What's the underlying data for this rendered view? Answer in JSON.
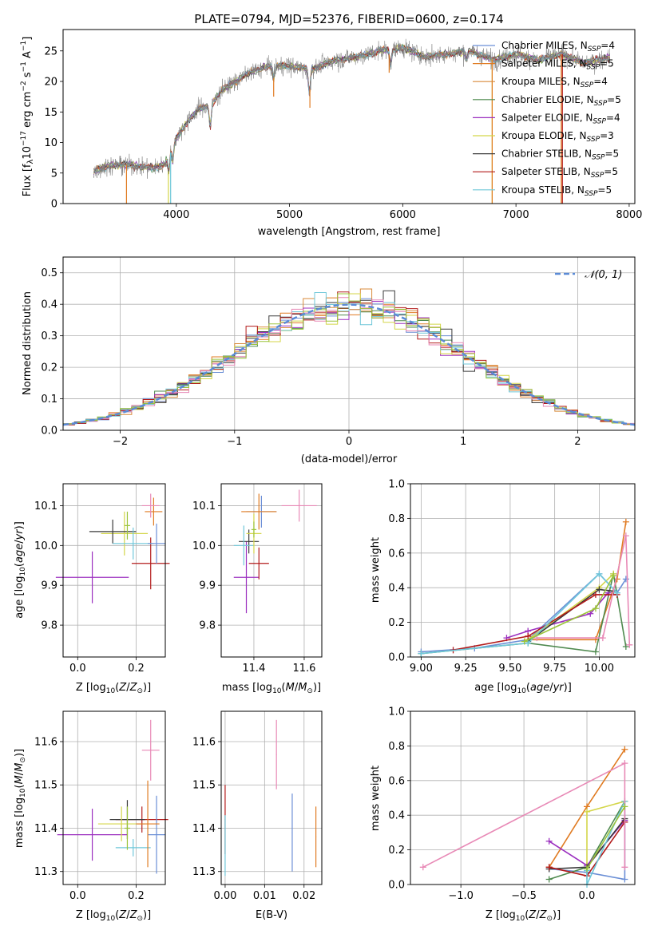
{
  "colors": {
    "Chabrier MILES": "#6b8fd6",
    "Salpeter MILES": "#e07b22",
    "Kroupa MILES": "#d98a3a",
    "Chabrier ELODIE": "#4f8a4f",
    "Salpeter ELODIE": "#9b2fbf",
    "Kroupa ELODIE": "#d4d64a",
    "Chabrier STELIB": "#3a3a3a",
    "Salpeter STELIB": "#b31b1b",
    "Kroupa STELIB": "#6fc7d9",
    "pink": "#e889b6",
    "green2": "#9bc43a",
    "norm": "#5b8bd6"
  },
  "chart_data": [
    {
      "type": "line",
      "title": "PLATE=0794, MJD=52376, FIBERID=0600, z=0.174",
      "xlabel": "wavelength [Angstrom, rest frame]",
      "ylabel": "Flux [f_λ 10^-17 erg cm^-2 s^-1 A^-1]",
      "xlim": [
        3000,
        8050
      ],
      "ylim": [
        0,
        28.5
      ],
      "xticks": [
        "4000",
        "5000",
        "6000",
        "7000",
        "8000"
      ],
      "yticks": [
        "0",
        "5",
        "10",
        "15",
        "20",
        "25"
      ],
      "grid": false,
      "legend_position": "upper-right",
      "legend": [
        {
          "name": "Chabrier MILES",
          "n": "4"
        },
        {
          "name": "Salpeter MILES",
          "n": "5"
        },
        {
          "name": "Kroupa MILES",
          "n": "4"
        },
        {
          "name": "Chabrier ELODIE",
          "n": "5"
        },
        {
          "name": "Salpeter ELODIE",
          "n": "4"
        },
        {
          "name": "Kroupa ELODIE",
          "n": "3"
        },
        {
          "name": "Chabrier STELIB",
          "n": "5"
        },
        {
          "name": "Salpeter STELIB",
          "n": "5"
        },
        {
          "name": "Kroupa STELIB",
          "n": "5"
        }
      ],
      "spectrum_anchors": {
        "x": [
          3270,
          3400,
          3600,
          3800,
          3900,
          3950,
          4000,
          4100,
          4200,
          4300,
          4400,
          4600,
          4800,
          5000,
          5200,
          5400,
          5600,
          5800,
          6000,
          6200,
          6400,
          6600,
          6800,
          7000,
          7200,
          7400,
          7600,
          7830
        ],
        "y": [
          5.2,
          6.3,
          6.3,
          5.8,
          6.5,
          9.0,
          10.7,
          13.5,
          15.5,
          16.0,
          18.5,
          21.0,
          22.5,
          22.5,
          22.0,
          23.5,
          24.0,
          25.0,
          25.5,
          24.0,
          24.5,
          25.0,
          23.5,
          24.5,
          23.5,
          24.5,
          23.0,
          24.0
        ]
      }
    },
    {
      "type": "line",
      "xlabel": "(data-model)/error",
      "ylabel": "Normed distribution",
      "xlim": [
        -2.5,
        2.5
      ],
      "ylim": [
        0,
        0.55
      ],
      "xticks": [
        "−2",
        "−1",
        "0",
        "1",
        "2"
      ],
      "yticks": [
        "0.0",
        "0.1",
        "0.2",
        "0.3",
        "0.4",
        "0.5"
      ],
      "grid": true,
      "legend_position": "upper-right",
      "legend": [
        "𝒩(0, 1)"
      ],
      "bin_width": 0.1
    },
    {
      "type": "scatter",
      "xlabel": "Z [log10(Z/Z☉)]",
      "ylabel": "age [log10(age/yr)]",
      "xlim": [
        -0.05,
        0.3
      ],
      "ylim": [
        9.72,
        10.155
      ],
      "xticks": [
        "0.0",
        "0.2"
      ],
      "yticks": [
        "9.8",
        "9.9",
        "10.0",
        "10.1"
      ],
      "grid": true,
      "points": [
        {
          "series": "Salpeter ELODIE",
          "x": 0.05,
          "y": 9.92,
          "xerr": 0.125,
          "yerr": 0.065
        },
        {
          "series": "Salpeter STELIB",
          "x": 0.25,
          "y": 9.955,
          "xerr": 0.065,
          "yerr": 0.065
        },
        {
          "series": "Kroupa ELODIE",
          "x": 0.16,
          "y": 10.03,
          "xerr": 0.08,
          "yerr": 0.055
        },
        {
          "series": "Chabrier STELIB",
          "x": 0.12,
          "y": 10.035,
          "xerr": 0.08,
          "yerr": 0.03
        },
        {
          "series": "Kroupa STELIB",
          "x": 0.19,
          "y": 10.005,
          "xerr": 0.07,
          "yerr": 0.04
        },
        {
          "series": "Chabrier MILES",
          "x": 0.27,
          "y": 10.005,
          "xerr": 0.03,
          "yerr": 0.05
        },
        {
          "series": "Salpeter MILES",
          "x": 0.26,
          "y": 10.085,
          "xerr": 0.03,
          "yerr": 0.035
        },
        {
          "series": "Pink",
          "x": 0.25,
          "y": 10.1,
          "xerr": 0.03,
          "yerr": 0.03
        },
        {
          "series": "Green2",
          "x": 0.17,
          "y": 10.05,
          "xerr": 0.01,
          "yerr": 0.035
        }
      ]
    },
    {
      "type": "scatter",
      "xlabel": "mass [log10(M/M☉)]",
      "ylabel": "",
      "xlim": [
        11.27,
        11.67
      ],
      "ylim": [
        9.72,
        10.155
      ],
      "xticks": [
        "11.4",
        "11.6"
      ],
      "yticks": [
        "9.8",
        "9.9",
        "10.0",
        "10.1"
      ],
      "grid": true,
      "points": [
        {
          "series": "Salpeter ELODIE",
          "x": 11.37,
          "y": 9.92,
          "xerr": 0.05,
          "yerr": 0.09
        },
        {
          "series": "Salpeter STELIB",
          "x": 11.42,
          "y": 9.955,
          "xerr": 0.04,
          "yerr": 0.04
        },
        {
          "series": "Chabrier STELIB",
          "x": 11.38,
          "y": 10.01,
          "xerr": 0.04,
          "yerr": 0.03
        },
        {
          "series": "Kroupa STELIB",
          "x": 11.36,
          "y": 10.0,
          "xerr": 0.04,
          "yerr": 0.05
        },
        {
          "series": "Kroupa ELODIE",
          "x": 11.4,
          "y": 10.03,
          "xerr": 0.03,
          "yerr": 0.05
        },
        {
          "series": "Chabrier MILES",
          "x": 11.43,
          "y": 10.085,
          "xerr": 0.06,
          "yerr": 0.04
        },
        {
          "series": "Salpeter MILES",
          "x": 11.42,
          "y": 10.085,
          "xerr": 0.07,
          "yerr": 0.045
        },
        {
          "series": "Pink",
          "x": 11.58,
          "y": 10.1,
          "xerr": 0.07,
          "yerr": 0.04
        },
        {
          "series": "Green2",
          "x": 11.4,
          "y": 10.04,
          "xerr": 0.01,
          "yerr": 0.02
        }
      ]
    },
    {
      "type": "line",
      "xlabel": "age [log10(age/yr)]",
      "ylabel": "mass weight",
      "xlim": [
        8.94,
        10.2
      ],
      "ylim": [
        0.0,
        1.0
      ],
      "xticks": [
        "9.00",
        "9.25",
        "9.50",
        "9.75",
        "10.00"
      ],
      "yticks": [
        "0.0",
        "0.2",
        "0.4",
        "0.6",
        "0.8",
        "1.0"
      ],
      "grid": true,
      "series": [
        {
          "name": "Chabrier MILES",
          "x": [
            9.0,
            9.3,
            9.6,
            10.0,
            10.1,
            10.15
          ],
          "y": [
            0.03,
            0.05,
            0.1,
            0.48,
            0.37,
            0.45
          ]
        },
        {
          "name": "Salpeter MILES",
          "x": [
            9.6,
            9.98,
            10.1,
            10.15
          ],
          "y": [
            0.1,
            0.1,
            0.45,
            0.78
          ]
        },
        {
          "name": "Chabrier ELODIE",
          "x": [
            9.0,
            9.6,
            9.98,
            10.08,
            10.15
          ],
          "y": [
            0.02,
            0.08,
            0.03,
            0.48,
            0.06
          ]
        },
        {
          "name": "Salpeter ELODIE",
          "x": [
            9.48,
            9.6,
            9.95,
            10.05
          ],
          "y": [
            0.11,
            0.15,
            0.25,
            0.37
          ]
        },
        {
          "name": "Kroupa ELODIE",
          "x": [
            9.6,
            10.0,
            10.08
          ],
          "y": [
            0.1,
            0.4,
            0.48
          ]
        },
        {
          "name": "Chabrier STELIB",
          "x": [
            9.6,
            10.0,
            10.08
          ],
          "y": [
            0.09,
            0.39,
            0.38
          ]
        },
        {
          "name": "Salpeter STELIB",
          "x": [
            9.18,
            9.6,
            9.98,
            10.1
          ],
          "y": [
            0.04,
            0.12,
            0.36,
            0.36
          ]
        },
        {
          "name": "Kroupa STELIB",
          "x": [
            9.0,
            9.6,
            10.0,
            10.1
          ],
          "y": [
            0.02,
            0.08,
            0.48,
            0.37
          ]
        },
        {
          "name": "Pink",
          "x": [
            9.65,
            10.02,
            10.15,
            10.17
          ],
          "y": [
            0.11,
            0.11,
            0.7,
            0.07
          ]
        },
        {
          "name": "Green2",
          "x": [
            9.58,
            9.98,
            10.08
          ],
          "y": [
            0.09,
            0.28,
            0.47
          ]
        }
      ]
    },
    {
      "type": "scatter",
      "xlabel": "Z [log10(Z/Z☉)]",
      "ylabel": "mass [log10(M/M☉)]",
      "xlim": [
        -0.05,
        0.3
      ],
      "ylim": [
        11.27,
        11.67
      ],
      "xticks": [
        "0.0",
        "0.2"
      ],
      "yticks": [
        "11.3",
        "11.4",
        "11.5",
        "11.6"
      ],
      "grid": true,
      "points": [
        {
          "series": "Salpeter ELODIE",
          "x": 0.05,
          "y": 11.385,
          "xerr": 0.12,
          "yerr": 0.06
        },
        {
          "series": "Salpeter STELIB",
          "x": 0.22,
          "y": 11.42,
          "xerr": 0.09,
          "yerr": 0.03
        },
        {
          "series": "Chabrier STELIB",
          "x": 0.17,
          "y": 11.42,
          "xerr": 0.06,
          "yerr": 0.045
        },
        {
          "series": "Kroupa ELODIE",
          "x": 0.15,
          "y": 11.41,
          "xerr": 0.08,
          "yerr": 0.04
        },
        {
          "series": "Kroupa STELIB",
          "x": 0.19,
          "y": 11.355,
          "xerr": 0.06,
          "yerr": 0.02
        },
        {
          "series": "Chabrier MILES",
          "x": 0.27,
          "y": 11.385,
          "xerr": 0.03,
          "yerr": 0.09
        },
        {
          "series": "Salpeter MILES",
          "x": 0.24,
          "y": 11.41,
          "xerr": 0.04,
          "yerr": 0.1
        },
        {
          "series": "Pink",
          "x": 0.25,
          "y": 11.58,
          "xerr": 0.03,
          "yerr": 0.07
        },
        {
          "series": "Green2",
          "x": 0.17,
          "y": 11.4,
          "xerr": 0.01,
          "yerr": 0.05
        }
      ]
    },
    {
      "type": "scatter",
      "xlabel": "E(B-V)",
      "ylabel": "",
      "xlim": [
        -0.001,
        0.0245
      ],
      "ylim": [
        11.27,
        11.67
      ],
      "xticks": [
        "0.00",
        "0.01",
        "0.02"
      ],
      "yticks": [
        "11.3",
        "11.4",
        "11.5",
        "11.6"
      ],
      "grid": true,
      "points": [
        {
          "series": "Salpeter STELIB",
          "x": 0.0,
          "y": 11.42,
          "xerr": 0.0001,
          "yerr": 0.08
        },
        {
          "series": "Kroupa STELIB",
          "x": 0.0,
          "y": 11.36,
          "xerr": 0.0001,
          "yerr": 0.07
        },
        {
          "series": "Pink",
          "x": 0.013,
          "y": 11.57,
          "xerr": 0.0001,
          "yerr": 0.08
        },
        {
          "series": "Chabrier MILES",
          "x": 0.017,
          "y": 11.39,
          "xerr": 0.0001,
          "yerr": 0.09
        },
        {
          "series": "Salpeter MILES",
          "x": 0.023,
          "y": 11.38,
          "xerr": 0.0001,
          "yerr": 0.07
        }
      ]
    },
    {
      "type": "line",
      "xlabel": "Z [log10(Z/Z☉)]",
      "ylabel": "mass weight",
      "xlim": [
        -1.4,
        0.38
      ],
      "ylim": [
        0.0,
        1.0
      ],
      "xticks": [
        "−1.0",
        "−0.5",
        "0.0"
      ],
      "yticks": [
        "0.0",
        "0.2",
        "0.4",
        "0.6",
        "0.8",
        "1.0"
      ],
      "grid": true,
      "series": [
        {
          "name": "Chabrier MILES",
          "x": [
            -0.3,
            0.0,
            0.3,
            0.3
          ],
          "y": [
            0.09,
            0.07,
            0.03,
            0.48
          ]
        },
        {
          "name": "Salpeter MILES",
          "x": [
            -0.3,
            0.0,
            0.3
          ],
          "y": [
            0.1,
            0.45,
            0.78
          ]
        },
        {
          "name": "Chabrier ELODIE",
          "x": [
            -0.3,
            0.0,
            0.3
          ],
          "y": [
            0.03,
            0.1,
            0.48
          ]
        },
        {
          "name": "Salpeter ELODIE",
          "x": [
            -0.3,
            0.0,
            0.3
          ],
          "y": [
            0.25,
            0.11,
            0.37
          ]
        },
        {
          "name": "Kroupa ELODIE",
          "x": [
            0.0,
            0.0,
            0.3
          ],
          "y": [
            0.1,
            0.42,
            0.48
          ]
        },
        {
          "name": "Chabrier STELIB",
          "x": [
            -0.3,
            0.0,
            0.3
          ],
          "y": [
            0.09,
            0.1,
            0.38
          ]
        },
        {
          "name": "Salpeter STELIB",
          "x": [
            -0.3,
            0.0,
            0.3
          ],
          "y": [
            0.1,
            0.05,
            0.36
          ]
        },
        {
          "name": "Kroupa STELIB",
          "x": [
            0.0,
            0.0,
            0.3
          ],
          "y": [
            0.08,
            0.0,
            0.48
          ]
        },
        {
          "name": "Pink",
          "x": [
            -1.3,
            0.3,
            0.3
          ],
          "y": [
            0.1,
            0.7,
            0.1
          ]
        },
        {
          "name": "Green2",
          "x": [
            0.0,
            0.3
          ],
          "y": [
            0.09,
            0.45
          ]
        }
      ]
    }
  ]
}
